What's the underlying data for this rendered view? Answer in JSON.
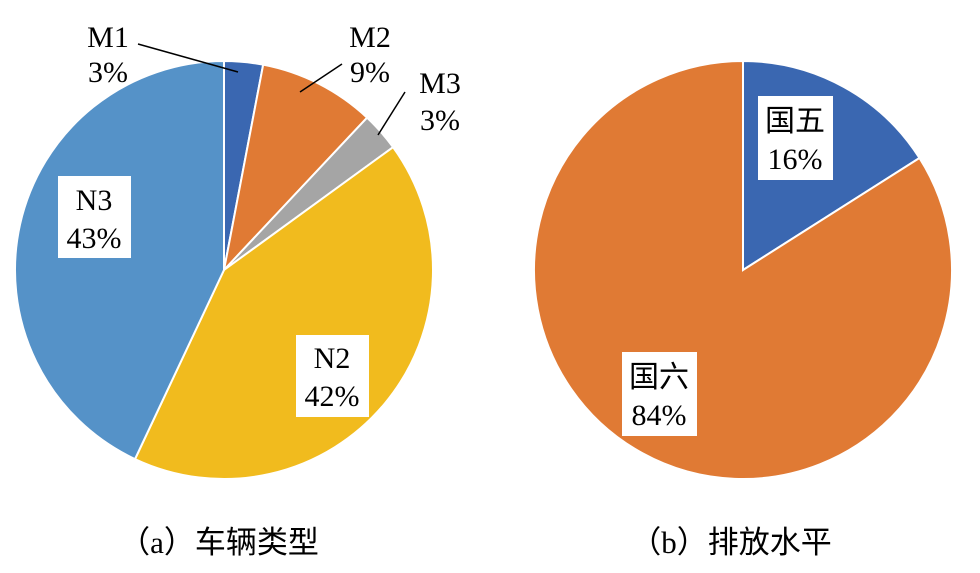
{
  "chart_data": [
    {
      "type": "pie",
      "caption": "（a）车辆类型",
      "slices": [
        {
          "name": "M1",
          "value": 3,
          "label": "3%",
          "color": "#3A67B1"
        },
        {
          "name": "M2",
          "value": 9,
          "label": "9%",
          "color": "#E07A34"
        },
        {
          "name": "M3",
          "value": 3,
          "label": "3%",
          "color": "#A5A5A5"
        },
        {
          "name": "N2",
          "value": 42,
          "label": "42%",
          "color": "#F1BB1E"
        },
        {
          "name": "N3",
          "value": 43,
          "label": "43%",
          "color": "#5592C8"
        }
      ]
    },
    {
      "type": "pie",
      "caption": "（b）排放水平",
      "slices": [
        {
          "name": "国五",
          "value": 16,
          "label": "16%",
          "color": "#3A67B1"
        },
        {
          "name": "国六",
          "value": 84,
          "label": "84%",
          "color": "#E07A34"
        }
      ]
    }
  ]
}
